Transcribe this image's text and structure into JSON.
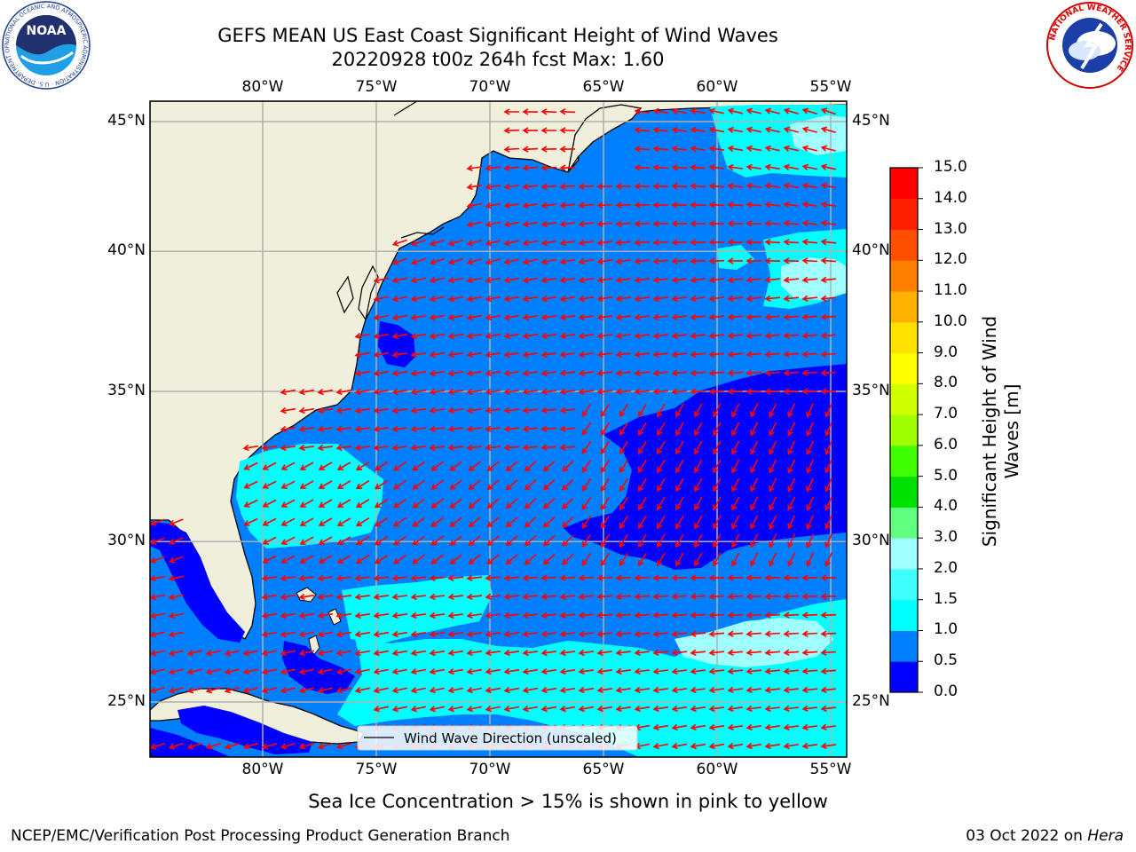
{
  "header": {
    "title_line1": "GEFS MEAN US East Coast Significant Height of Wind Waves",
    "title_line2": "20220928 t00z 264h fcst   Max: 1.60"
  },
  "map": {
    "lon_labels": [
      "80°W",
      "75°W",
      "70°W",
      "65°W",
      "60°W",
      "55°W"
    ],
    "lat_labels": [
      "45°N",
      "40°N",
      "35°N",
      "30°N",
      "25°N"
    ],
    "lon_values": [
      -80,
      -75,
      -70,
      -65,
      -60,
      -55
    ],
    "lat_values": [
      45,
      40,
      35,
      30,
      25
    ],
    "legend_text": "Wind Wave Direction (unscaled)",
    "colors": {
      "land": "#efefdc",
      "grid": "#b0b0b0",
      "arrow": "#ff0000"
    }
  },
  "colorbar": {
    "label": "Significant Height of Wind Waves [m]",
    "tick_labels": [
      "0.0",
      "0.5",
      "1.0",
      "1.5",
      "2.0",
      "3.0",
      "4.0",
      "5.0",
      "6.0",
      "7.0",
      "8.0",
      "9.0",
      "10.0",
      "11.0",
      "12.0",
      "13.0",
      "14.0",
      "15.0"
    ],
    "colors": [
      "#0000ff",
      "#0080ff",
      "#00ffff",
      "#40ffff",
      "#a0ffff",
      "#60ff80",
      "#00e000",
      "#40ff00",
      "#a0ff00",
      "#d0ff00",
      "#ffff00",
      "#ffe000",
      "#ffb000",
      "#ff8000",
      "#ff5000",
      "#ff2000",
      "#ff0000"
    ]
  },
  "subcaption": "Sea Ice Concentration > 15% is shown in pink to yellow",
  "footer": {
    "left": "NCEP/EMC/Verification Post Processing Product Generation Branch",
    "right_date": "03 Oct 2022 on ",
    "right_host": "Hera"
  },
  "logos": {
    "noaa_text": "NOAA",
    "noaa_ring": "NATIONAL OCEANIC AND ATMOSPHERIC ADMINISTRATION · U.S. DEPARTMENT OF COMMERCE",
    "nws_ring": "NATIONAL WEATHER SERVICE"
  }
}
